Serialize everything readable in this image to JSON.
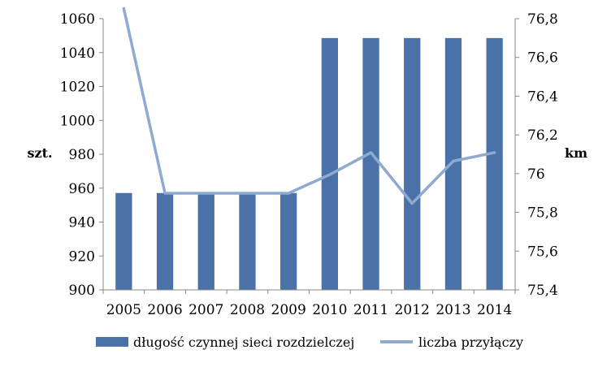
{
  "chart_data": {
    "type": "bar",
    "categories": [
      "2005",
      "2006",
      "2007",
      "2008",
      "2009",
      "2010",
      "2011",
      "2012",
      "2013",
      "2014"
    ],
    "series": [
      {
        "name": "długość czynnej sieci rozdzielczej",
        "type": "bar",
        "axis": "right",
        "unit": "km",
        "values": [
          75.9,
          75.9,
          75.9,
          75.9,
          75.9,
          76.7,
          76.7,
          76.7,
          76.7,
          76.7
        ],
        "color": "#4a72a8"
      },
      {
        "name": "liczba przyłączy",
        "type": "line",
        "axis": "left",
        "unit": "szt.",
        "values": [
          1066,
          957,
          957,
          957,
          957,
          968,
          981,
          951,
          976,
          981
        ],
        "color": "#8eaad1"
      }
    ],
    "y_left": {
      "label": "szt.",
      "ylim": [
        900,
        1060
      ],
      "ticks": [
        "900",
        "920",
        "940",
        "960",
        "980",
        "1000",
        "1020",
        "1040",
        "1060"
      ]
    },
    "y_right": {
      "label": "km",
      "ylim": [
        75.4,
        76.8
      ],
      "ticks": [
        "75,4",
        "75,6",
        "75,8",
        "76",
        "76,2",
        "76,4",
        "76,6",
        "76,8"
      ]
    },
    "grid": false,
    "legend_position": "bottom"
  }
}
